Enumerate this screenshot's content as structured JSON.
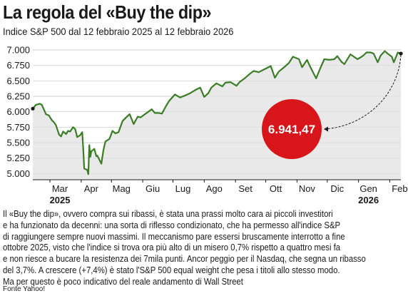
{
  "title": "La regola del «Buy the dip»",
  "subtitle": "Indice S&P 500 dal 12 febbraio 2025 al 12 febbraio 2026",
  "source": "Fonte Yahoo!",
  "body_lines": [
    "Il «Buy the dip», ovvero compra sui ribassi, è stata una prassi molto cara ai piccoli investitori",
    "e ha funzionato da decenni: una sorta di riflesso condizionato, che ha permesso all'indice S&P",
    "di raggiungere sempre nuovi massimi. Il meccanismo pare essersi bruscamente interrotto a fine",
    "ottobre 2025, visto che l'indice si trova ora più alto di un misero 0,7% rispetto a quattro mesi fa",
    "e non riesce a bucare la resistenza dei 7mila punti. Ancor peggio per il Nasdaq, che segna un ribasso",
    "del 3,7%. A crescere (+7,4%) è stato l'S&P 500 equal weight che pesa i titoli allo stesso modo.",
    "Ma per questo è poco indicativo del reale andamento di Wall Street"
  ],
  "colors": {
    "line": "#3a7d27",
    "area": "#e9e9ea",
    "callout": "#d7151b",
    "grid": "#c8c8c8"
  },
  "chart_data": {
    "type": "area",
    "series_label": "Indice S&P 500",
    "ylim": [
      4900,
      7000
    ],
    "yticks": [
      5000,
      5250,
      5500,
      5750,
      6000,
      6250,
      6500,
      6750,
      7000
    ],
    "ytick_labels": [
      "5.000",
      "5.250",
      "5.500",
      "5.750",
      "6.000",
      "6.250",
      "6.500",
      "6.750",
      "7.000"
    ],
    "x_range": [
      "2025-02-12",
      "2026-02-12"
    ],
    "month_ticks": [
      {
        "date": "2025-03-01",
        "label": "Mar",
        "year": "2025"
      },
      {
        "date": "2025-04-01",
        "label": "Apr"
      },
      {
        "date": "2025-05-01",
        "label": "Mag"
      },
      {
        "date": "2025-06-01",
        "label": "Giu"
      },
      {
        "date": "2025-07-01",
        "label": "Lug"
      },
      {
        "date": "2025-08-01",
        "label": "Ago"
      },
      {
        "date": "2025-09-01",
        "label": "Set"
      },
      {
        "date": "2025-10-01",
        "label": "Ott"
      },
      {
        "date": "2025-11-01",
        "label": "Nov"
      },
      {
        "date": "2025-12-01",
        "label": "Dic"
      },
      {
        "date": "2026-01-01",
        "label": "Gen",
        "year": "2026"
      },
      {
        "date": "2026-02-01",
        "label": "Feb"
      }
    ],
    "last_value_label": "6.941,47",
    "values": [
      [
        "2025-02-12",
        6050
      ],
      [
        "2025-02-15",
        6110
      ],
      [
        "2025-02-19",
        6130
      ],
      [
        "2025-02-21",
        6110
      ],
      [
        "2025-02-25",
        5960
      ],
      [
        "2025-02-28",
        5940
      ],
      [
        "2025-03-03",
        5860
      ],
      [
        "2025-03-05",
        5830
      ],
      [
        "2025-03-07",
        5780
      ],
      [
        "2025-03-10",
        5630
      ],
      [
        "2025-03-12",
        5600
      ],
      [
        "2025-03-14",
        5680
      ],
      [
        "2025-03-17",
        5640
      ],
      [
        "2025-03-19",
        5690
      ],
      [
        "2025-03-21",
        5680
      ],
      [
        "2025-03-24",
        5750
      ],
      [
        "2025-03-26",
        5720
      ],
      [
        "2025-03-28",
        5590
      ],
      [
        "2025-03-31",
        5620
      ],
      [
        "2025-04-02",
        5670
      ],
      [
        "2025-04-03",
        5400
      ],
      [
        "2025-04-04",
        5080
      ],
      [
        "2025-04-07",
        5060
      ],
      [
        "2025-04-08",
        4990
      ],
      [
        "2025-04-09",
        5460
      ],
      [
        "2025-04-10",
        5270
      ],
      [
        "2025-04-11",
        5360
      ],
      [
        "2025-04-14",
        5400
      ],
      [
        "2025-04-16",
        5280
      ],
      [
        "2025-04-17",
        5290
      ],
      [
        "2025-04-21",
        5160
      ],
      [
        "2025-04-23",
        5380
      ],
      [
        "2025-04-25",
        5520
      ],
      [
        "2025-04-29",
        5560
      ],
      [
        "2025-05-02",
        5690
      ],
      [
        "2025-05-05",
        5650
      ],
      [
        "2025-05-08",
        5670
      ],
      [
        "2025-05-12",
        5850
      ],
      [
        "2025-05-15",
        5900
      ],
      [
        "2025-05-19",
        5960
      ],
      [
        "2025-05-23",
        5800
      ],
      [
        "2025-05-27",
        5920
      ],
      [
        "2025-05-30",
        5910
      ],
      [
        "2025-06-04",
        5970
      ],
      [
        "2025-06-10",
        6040
      ],
      [
        "2025-06-13",
        5980
      ],
      [
        "2025-06-17",
        5980
      ],
      [
        "2025-06-20",
        5970
      ],
      [
        "2025-06-24",
        6090
      ],
      [
        "2025-06-27",
        6170
      ],
      [
        "2025-07-03",
        6280
      ],
      [
        "2025-07-08",
        6230
      ],
      [
        "2025-07-14",
        6270
      ],
      [
        "2025-07-18",
        6300
      ],
      [
        "2025-07-24",
        6360
      ],
      [
        "2025-07-28",
        6390
      ],
      [
        "2025-08-01",
        6240
      ],
      [
        "2025-08-05",
        6300
      ],
      [
        "2025-08-08",
        6390
      ],
      [
        "2025-08-13",
        6460
      ],
      [
        "2025-08-19",
        6410
      ],
      [
        "2025-08-22",
        6470
      ],
      [
        "2025-08-27",
        6480
      ],
      [
        "2025-09-02",
        6420
      ],
      [
        "2025-09-05",
        6480
      ],
      [
        "2025-09-10",
        6540
      ],
      [
        "2025-09-15",
        6610
      ],
      [
        "2025-09-19",
        6660
      ],
      [
        "2025-09-24",
        6640
      ],
      [
        "2025-09-30",
        6690
      ],
      [
        "2025-10-06",
        6740
      ],
      [
        "2025-10-10",
        6550
      ],
      [
        "2025-10-14",
        6650
      ],
      [
        "2025-10-20",
        6730
      ],
      [
        "2025-10-24",
        6790
      ],
      [
        "2025-10-28",
        6890
      ],
      [
        "2025-11-03",
        6850
      ],
      [
        "2025-11-06",
        6720
      ],
      [
        "2025-11-11",
        6840
      ],
      [
        "2025-11-14",
        6730
      ],
      [
        "2025-11-20",
        6540
      ],
      [
        "2025-11-24",
        6700
      ],
      [
        "2025-11-28",
        6850
      ],
      [
        "2025-12-03",
        6840
      ],
      [
        "2025-12-08",
        6850
      ],
      [
        "2025-12-11",
        6900
      ],
      [
        "2025-12-15",
        6810
      ],
      [
        "2025-12-18",
        6770
      ],
      [
        "2025-12-24",
        6930
      ],
      [
        "2025-12-31",
        6850
      ],
      [
        "2026-01-05",
        6900
      ],
      [
        "2026-01-09",
        6960
      ],
      [
        "2026-01-13",
        6960
      ],
      [
        "2026-01-16",
        6940
      ],
      [
        "2026-01-20",
        6800
      ],
      [
        "2026-01-23",
        6910
      ],
      [
        "2026-01-27",
        6980
      ],
      [
        "2026-01-30",
        6940
      ],
      [
        "2026-02-03",
        6890
      ],
      [
        "2026-02-05",
        6800
      ],
      [
        "2026-02-09",
        6960
      ],
      [
        "2026-02-12",
        6941.47
      ]
    ]
  }
}
